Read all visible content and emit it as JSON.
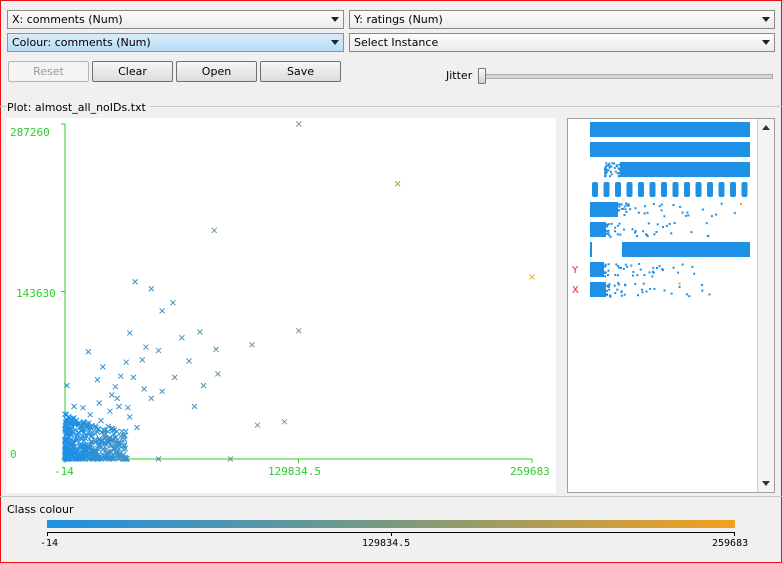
{
  "controls": {
    "x_select": "X: comments (Num)",
    "y_select": "Y: ratings (Num)",
    "colour_select": "Colour: comments (Num)",
    "instance_select": "Select Instance",
    "reset_label": "Reset",
    "clear_label": "Clear",
    "open_label": "Open",
    "save_label": "Save",
    "jitter_label": "Jitter",
    "jitter_value": 0
  },
  "plot": {
    "title": "Plot: almost_all_noIDs.txt"
  },
  "attribute_panel": {
    "y_marker": "Y",
    "x_marker": "X",
    "rows": 9
  },
  "class_colour": {
    "label": "Class colour",
    "min_label": "-14",
    "mid_label": "129834.5",
    "max_label": "259683",
    "color_low": "#1e90e6",
    "color_high": "#f5a01e"
  },
  "chart_data": {
    "type": "scatter",
    "title": "",
    "xlabel": "comments",
    "ylabel": "ratings",
    "xlim": [
      -14,
      259683
    ],
    "ylim": [
      0,
      287260
    ],
    "x_ticks": [
      "-14",
      "129834.5",
      "259683"
    ],
    "y_ticks": [
      "287260",
      "143630",
      "0"
    ],
    "marker": "x",
    "colors": {
      "low": "#1e90e6",
      "high": "#f5a01e"
    },
    "points": [
      [
        130000,
        287260
      ],
      [
        185000,
        236000
      ],
      [
        259683,
        156000
      ],
      [
        83000,
        196000
      ],
      [
        39000,
        152000
      ],
      [
        48000,
        146000
      ],
      [
        60000,
        134000
      ],
      [
        54000,
        127000
      ],
      [
        75000,
        109000
      ],
      [
        130000,
        110000
      ],
      [
        104000,
        98000
      ],
      [
        84000,
        94000
      ],
      [
        45000,
        96000
      ],
      [
        52000,
        93000
      ],
      [
        36000,
        108000
      ],
      [
        65000,
        104000
      ],
      [
        69000,
        84000
      ],
      [
        61000,
        70000
      ],
      [
        77000,
        63000
      ],
      [
        54000,
        58000
      ],
      [
        43000,
        85000
      ],
      [
        34000,
        83000
      ],
      [
        38000,
        70000
      ],
      [
        13000,
        92000
      ],
      [
        21000,
        79000
      ],
      [
        28000,
        62000
      ],
      [
        18000,
        68000
      ],
      [
        31000,
        71000
      ],
      [
        44000,
        60000
      ],
      [
        48000,
        52000
      ],
      [
        1000,
        63000
      ],
      [
        5000,
        45000
      ],
      [
        10000,
        44000
      ],
      [
        14000,
        38000
      ],
      [
        6000,
        30000
      ],
      [
        20000,
        33000
      ],
      [
        25000,
        41000
      ],
      [
        30000,
        45000
      ],
      [
        36000,
        36000
      ],
      [
        40000,
        27000
      ],
      [
        28000,
        18000
      ],
      [
        33000,
        12000
      ],
      [
        17000,
        14000
      ],
      [
        11000,
        10000
      ],
      [
        7000,
        8000
      ],
      [
        3000,
        5000
      ],
      [
        22000,
        20000
      ],
      [
        9000,
        24000
      ],
      [
        15000,
        22000
      ],
      [
        24000,
        28000
      ],
      [
        12000,
        30000
      ],
      [
        19000,
        48000
      ],
      [
        26000,
        55000
      ],
      [
        29000,
        52000
      ],
      [
        35000,
        44000
      ],
      [
        2000,
        2000
      ],
      [
        52000,
        0
      ],
      [
        92000,
        0
      ],
      [
        107000,
        29000
      ],
      [
        122000,
        32000
      ],
      [
        85000,
        73000
      ],
      [
        72000,
        45000
      ]
    ],
    "cluster": {
      "x_range": [
        -14,
        35000
      ],
      "y_range": [
        0,
        40000
      ]
    }
  }
}
